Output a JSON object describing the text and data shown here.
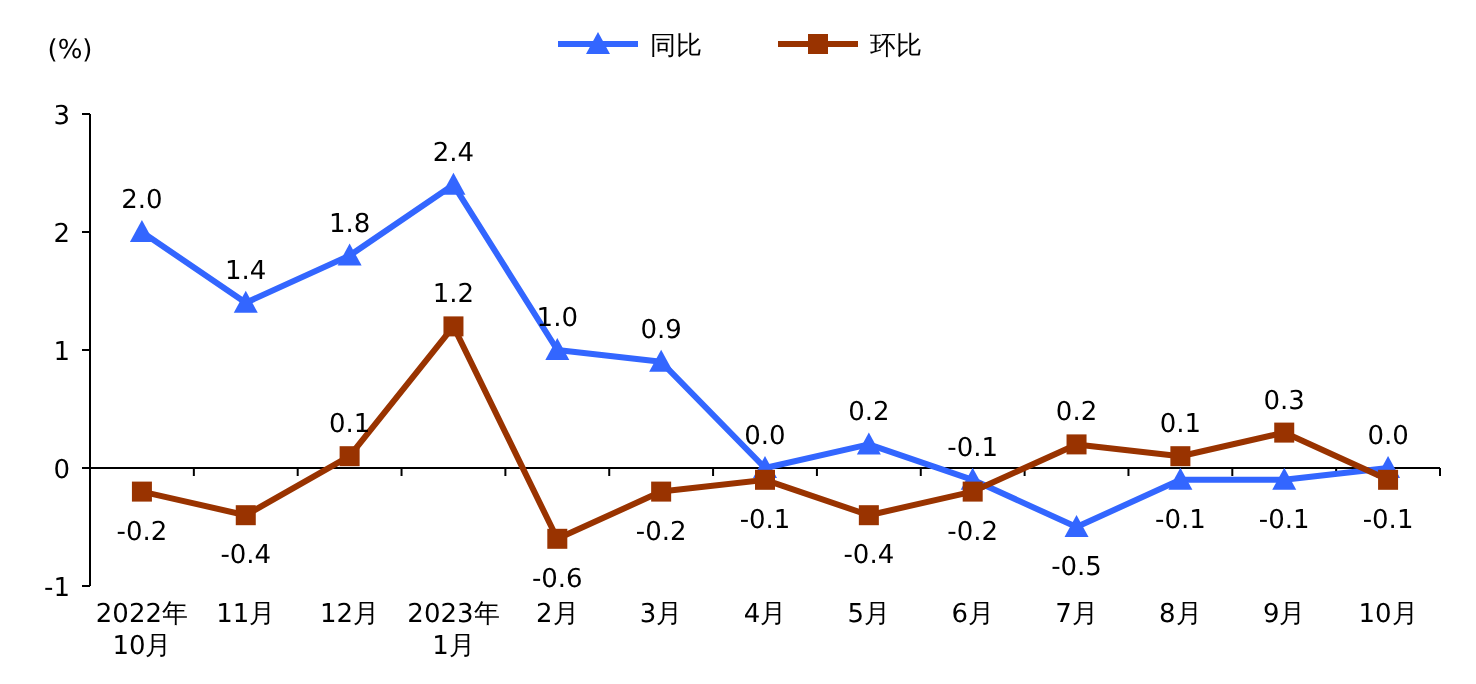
{
  "chart_data": {
    "type": "line",
    "ylabel": "(%)",
    "categories": [
      "2022年\n10月",
      "11月",
      "12月",
      "2023年\n1月",
      "2月",
      "3月",
      "4月",
      "5月",
      "6月",
      "7月",
      "8月",
      "9月",
      "10月"
    ],
    "series": [
      {
        "name": "同比",
        "color": "#3366ff",
        "marker": "triangle",
        "values": [
          2.0,
          1.4,
          1.8,
          2.4,
          1.0,
          0.9,
          0.0,
          0.2,
          -0.1,
          -0.5,
          -0.1,
          -0.1,
          0.0
        ],
        "value_labels": [
          "2.0",
          "1.4",
          "1.8",
          "2.4",
          "1.0",
          "0.9",
          "0.0",
          "0.2",
          "-0.1",
          "-0.5",
          "-0.1",
          "-0.1",
          "0.0"
        ]
      },
      {
        "name": "环比",
        "color": "#993300",
        "marker": "square",
        "values": [
          -0.2,
          -0.4,
          0.1,
          1.2,
          -0.6,
          -0.2,
          -0.1,
          -0.4,
          -0.2,
          0.2,
          0.1,
          0.3,
          -0.1
        ],
        "value_labels": [
          "-0.2",
          "-0.4",
          "0.1",
          "1.2",
          "-0.6",
          "-0.2",
          "-0.1",
          "-0.4",
          "-0.2",
          "0.2",
          "0.1",
          "0.3",
          "-0.1"
        ]
      }
    ],
    "ylim": [
      -1,
      3
    ],
    "yticks": [
      -1,
      0,
      1,
      2,
      3
    ],
    "legend": "top"
  }
}
